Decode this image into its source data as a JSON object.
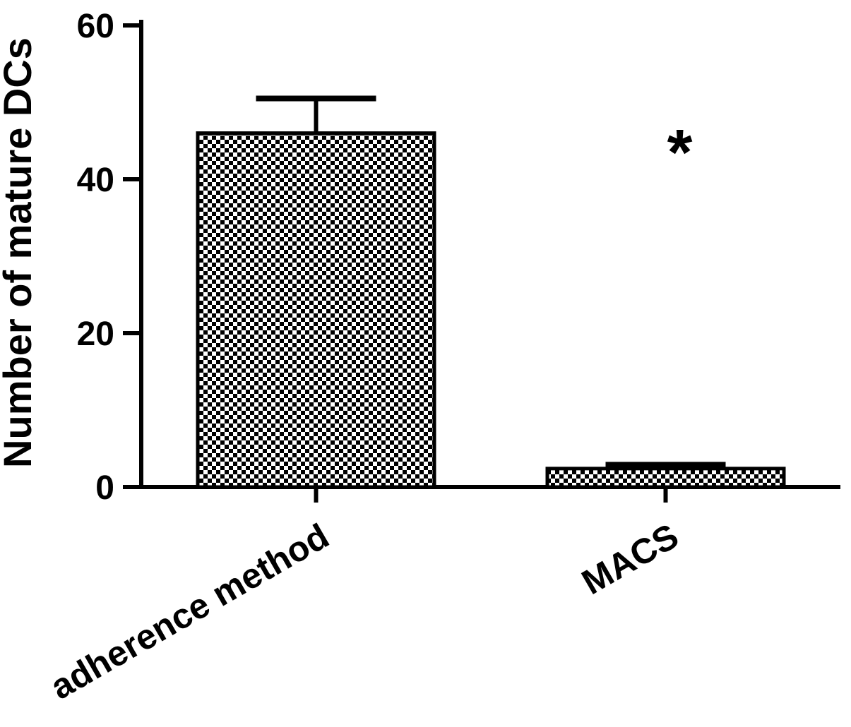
{
  "figure": {
    "ylabel": "Number of mature DCs"
  },
  "chart_data": {
    "type": "bar",
    "title": "",
    "xlabel": "",
    "ylabel": "Number of mature DCs",
    "categories": [
      "adherence method",
      "MACS"
    ],
    "values": [
      46,
      2.4
    ],
    "errors": [
      4.5,
      0.5
    ],
    "ylim": [
      0,
      60
    ],
    "yticks": [
      0,
      20,
      40,
      60
    ],
    "grid": false,
    "legend": false,
    "bar_fill_pattern": "checkerboard",
    "bar_color": "#000000",
    "background": "#ffffff",
    "annotations": [
      {
        "symbol": "*",
        "category_index": 1,
        "value": 44.5
      }
    ]
  }
}
